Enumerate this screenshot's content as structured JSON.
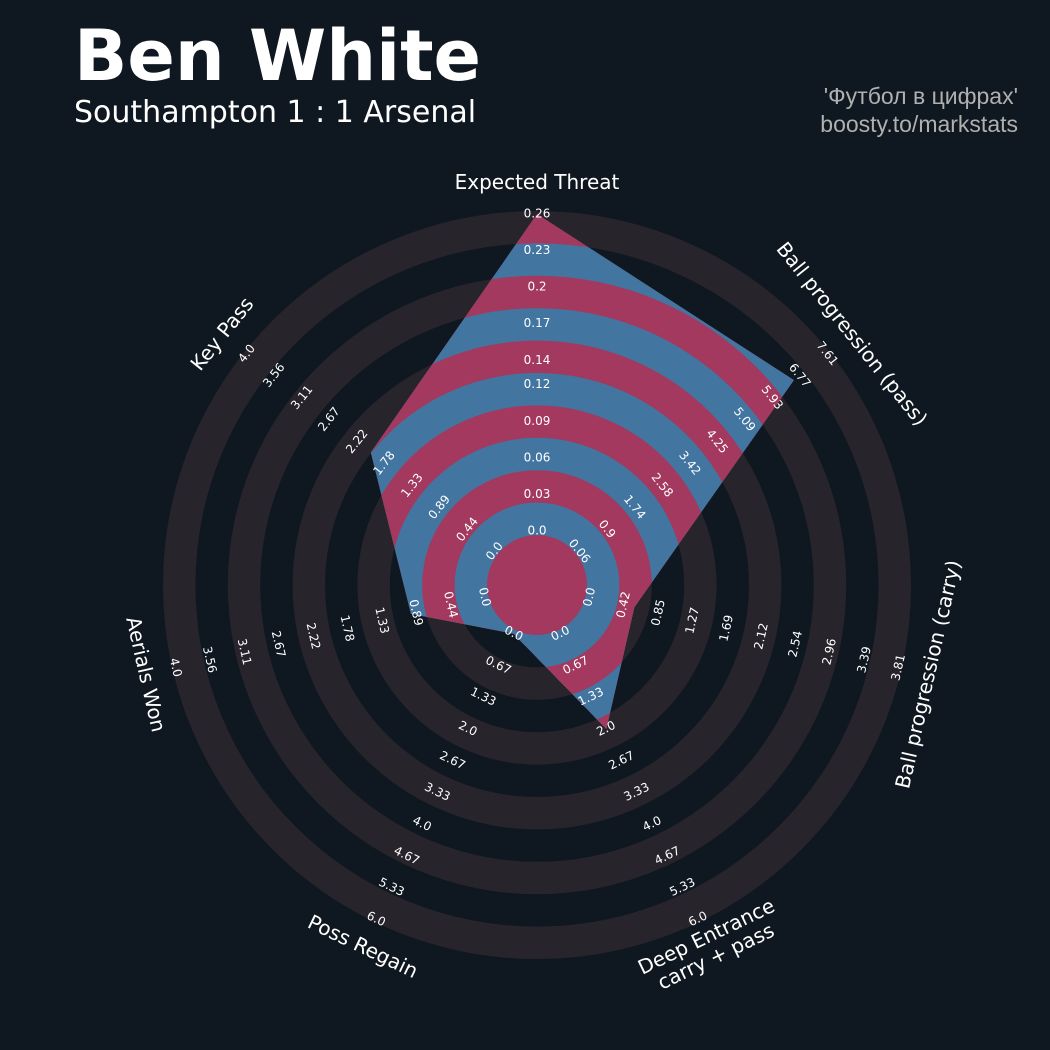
{
  "title": "Ben White",
  "subtitle": "Southampton 1 : 1 Arsenal",
  "credits": [
    "'Футбол в цифрах'",
    "boosty.to/markstats"
  ],
  "chart_data": {
    "type": "radar",
    "categories": [
      "Expected Threat",
      "Ball progression (pass)",
      "Ball progression (carry)",
      "Deep Entrance\ncarry + pass",
      "Poss Regain",
      "Aerials Won",
      "Key Pass"
    ],
    "values": [
      0.26,
      6.6,
      0.55,
      2.0,
      0.0,
      0.95,
      2.0
    ],
    "ranges": [
      [
        0,
        0.26
      ],
      [
        0.06,
        7.61
      ],
      [
        0,
        3.81
      ],
      [
        0,
        6
      ],
      [
        0,
        6
      ],
      [
        0,
        4
      ],
      [
        0,
        4
      ]
    ],
    "axis_ticks": [
      [
        {
          "value": 0,
          "label": "0.0"
        },
        0.03,
        0.06,
        0.09,
        0.12,
        0.14,
        0.17,
        0.2,
        0.23,
        0.26
      ],
      [
        0.06,
        0.9,
        1.74,
        2.58,
        3.42,
        4.25,
        5.09,
        5.93,
        6.77,
        7.61
      ],
      [
        {
          "value": 0,
          "label": "0.0"
        },
        0.42,
        0.85,
        1.27,
        1.69,
        2.12,
        2.54,
        2.96,
        3.39,
        3.81
      ],
      [
        {
          "value": 0,
          "label": "0.0"
        },
        0.67,
        1.33,
        {
          "value": 2,
          "label": "2.0"
        },
        2.67,
        3.33,
        {
          "value": 4,
          "label": "4.0"
        },
        4.67,
        5.33,
        {
          "value": 6,
          "label": "6.0"
        }
      ],
      [
        {
          "value": 0,
          "label": "0.0"
        },
        0.67,
        1.33,
        {
          "value": 2,
          "label": "2.0"
        },
        2.67,
        3.33,
        {
          "value": 4,
          "label": "4.0"
        },
        4.67,
        5.33,
        {
          "value": 6,
          "label": "6.0"
        }
      ],
      [
        {
          "value": 0,
          "label": "0.0"
        },
        0.44,
        0.89,
        1.33,
        1.78,
        2.22,
        2.67,
        3.11,
        3.56,
        {
          "value": 4,
          "label": "4.0"
        }
      ],
      [
        {
          "value": 0,
          "label": "0.0"
        },
        0.44,
        0.89,
        1.33,
        1.78,
        2.22,
        2.67,
        3.11,
        3.56,
        {
          "value": 4,
          "label": "4.0"
        }
      ]
    ],
    "color": "#4275a0",
    "highlight_color": "#a3395e",
    "ring_color": "#28242b"
  }
}
